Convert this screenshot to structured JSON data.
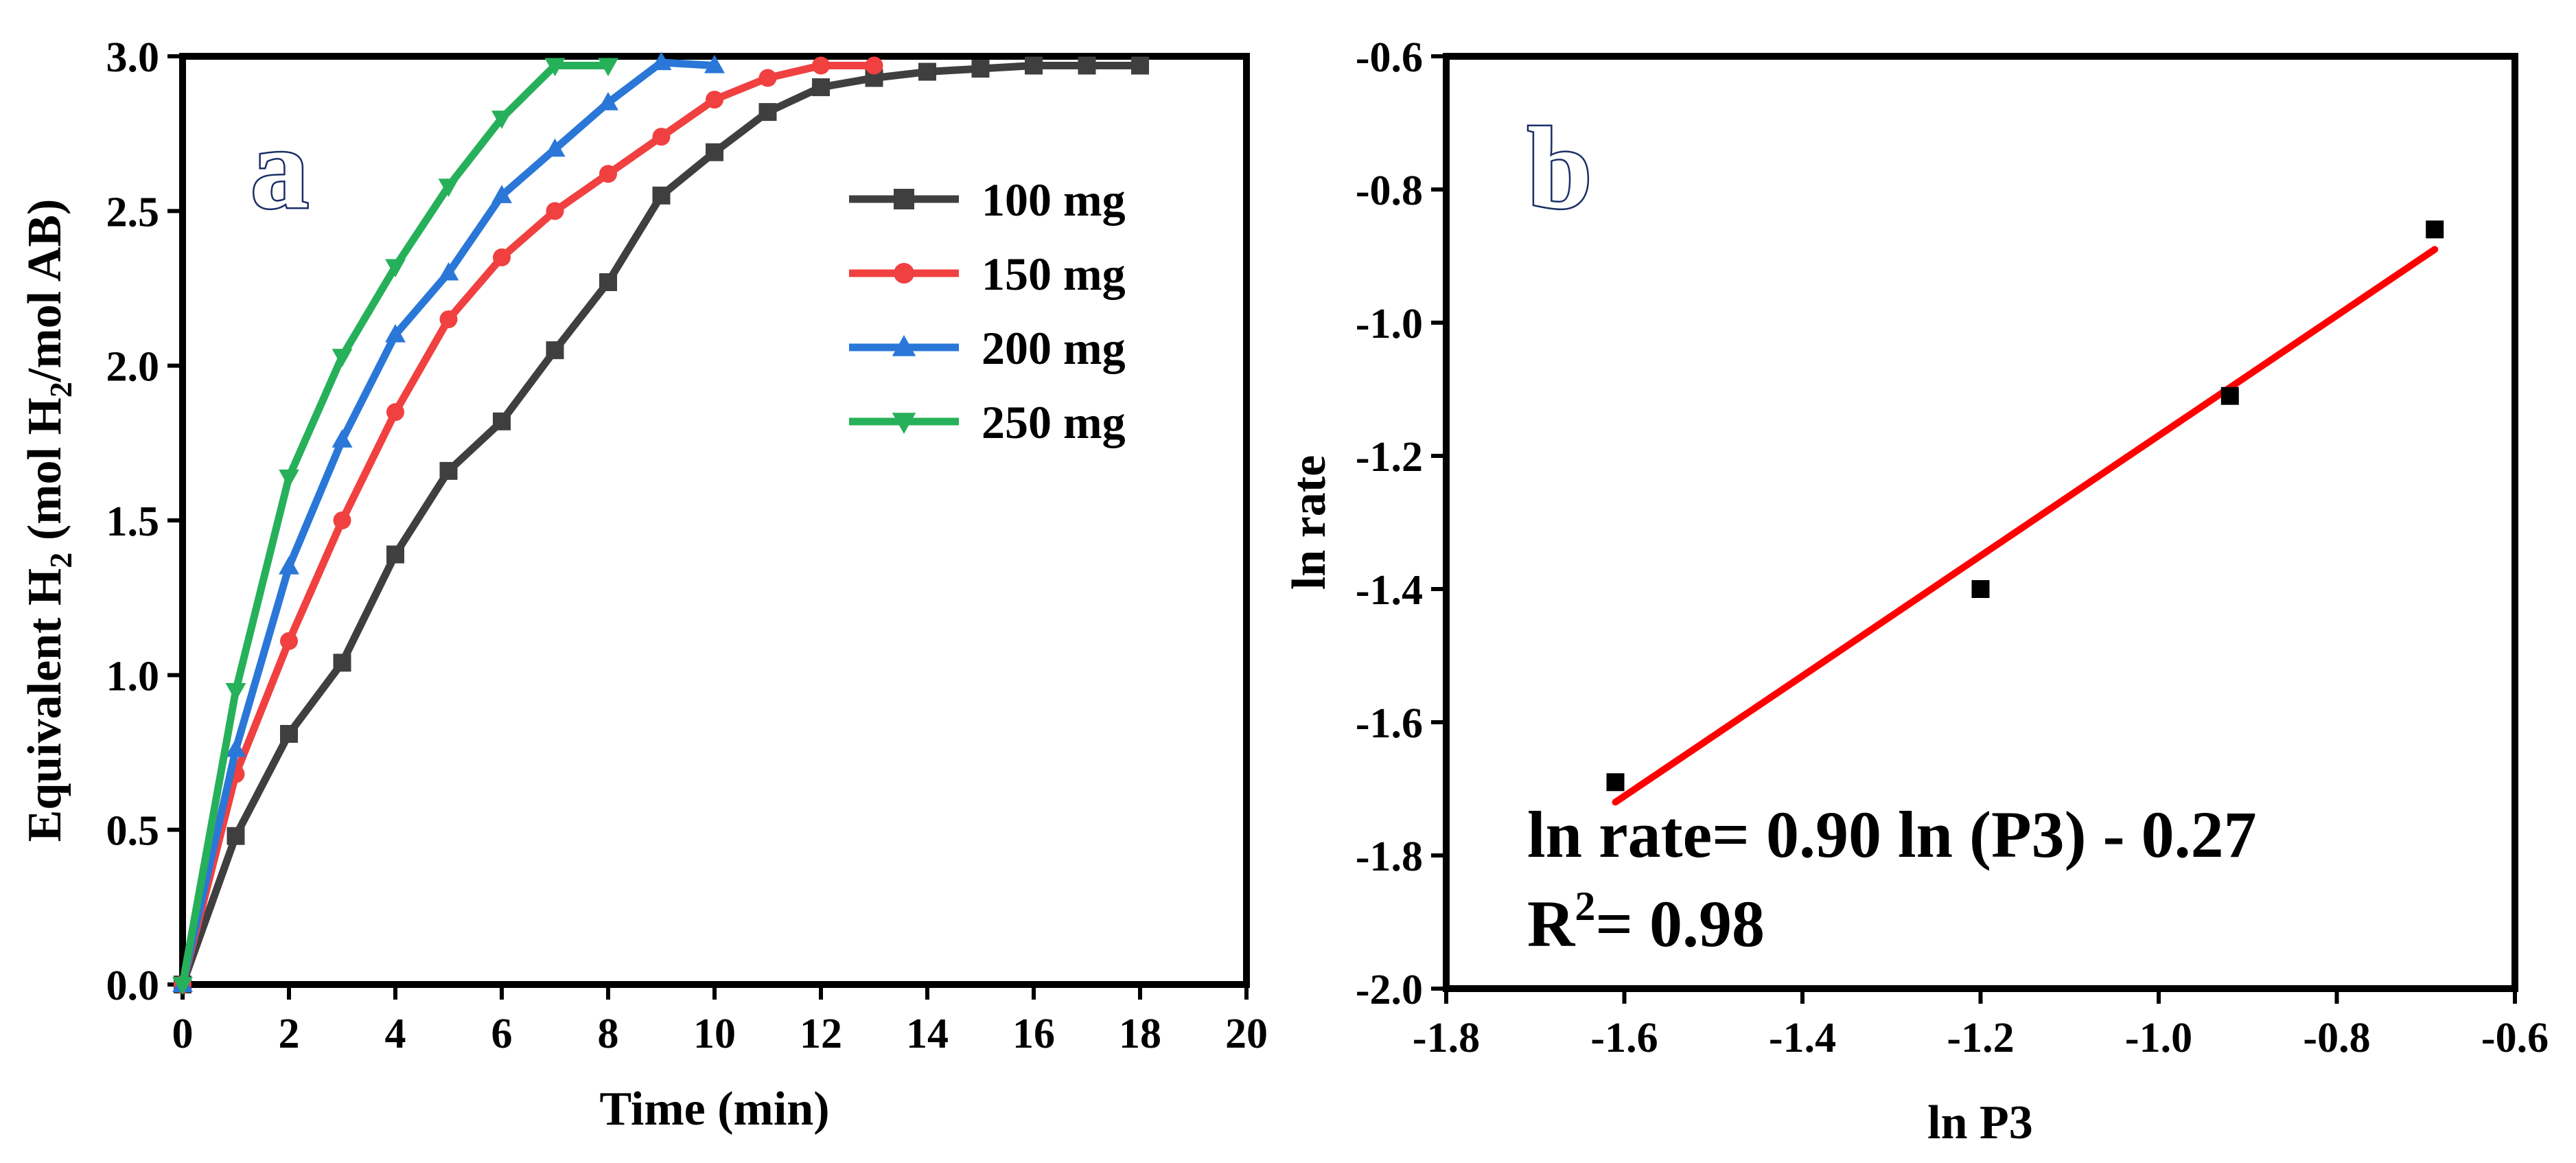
{
  "chart_data": [
    {
      "type": "line",
      "panel_label": "a",
      "xlabel": "Time (min)",
      "ylabel": {
        "pre": "Equivalent H",
        "sub1": "2",
        "mid": " (mol H",
        "sub2": "2",
        "post": "/mol AB)"
      },
      "xlim": [
        0,
        20
      ],
      "ylim": [
        0,
        3
      ],
      "xticks": [
        "0",
        "2",
        "4",
        "6",
        "8",
        "10",
        "12",
        "14",
        "16",
        "18",
        "20"
      ],
      "yticks": [
        "0.0",
        "0.5",
        "1.0",
        "1.5",
        "2.0",
        "2.5",
        "3.0"
      ],
      "legend_position": "top-right",
      "series": [
        {
          "name": "100 mg",
          "color": "#3f3f3f",
          "marker": "square",
          "x": [
            0,
            1,
            2,
            3,
            4,
            5,
            6,
            7,
            8,
            9,
            10,
            11,
            12,
            13,
            14,
            15,
            16,
            17,
            18
          ],
          "y": [
            0,
            0.48,
            0.81,
            1.04,
            1.39,
            1.66,
            1.82,
            2.05,
            2.27,
            2.55,
            2.69,
            2.82,
            2.9,
            2.93,
            2.95,
            2.96,
            2.97,
            2.97,
            2.97
          ]
        },
        {
          "name": "150 mg",
          "color": "#f04040",
          "marker": "circle",
          "x": [
            0,
            1,
            2,
            3,
            4,
            5,
            6,
            7,
            8,
            9,
            10,
            11,
            12,
            13
          ],
          "y": [
            0,
            0.68,
            1.11,
            1.5,
            1.85,
            2.15,
            2.35,
            2.5,
            2.62,
            2.74,
            2.86,
            2.93,
            2.97,
            2.97
          ]
        },
        {
          "name": "200 mg",
          "color": "#2a77d8",
          "marker": "triangle-up",
          "x": [
            0,
            1,
            2,
            3,
            4,
            5,
            6,
            7,
            8,
            9,
            10
          ],
          "y": [
            0,
            0.76,
            1.35,
            1.76,
            2.1,
            2.3,
            2.55,
            2.7,
            2.85,
            2.98,
            2.97
          ]
        },
        {
          "name": "250 mg",
          "color": "#27b05a",
          "marker": "triangle-down",
          "x": [
            0,
            1,
            2,
            3,
            4,
            5,
            6,
            7,
            8
          ],
          "y": [
            0,
            0.95,
            1.64,
            2.03,
            2.32,
            2.58,
            2.8,
            2.97,
            2.97
          ]
        }
      ]
    },
    {
      "type": "scatter",
      "panel_label": "b",
      "xlabel": "ln P3",
      "ylabel": "ln rate",
      "xlim": [
        -1.8,
        -0.6
      ],
      "ylim": [
        -2.0,
        -0.6
      ],
      "xticks": [
        "-1.8",
        "-1.6",
        "-1.4",
        "-1.2",
        "-1.0",
        "-0.8",
        "-0.6"
      ],
      "yticks": [
        "-0.6",
        "-0.8",
        "-1.0",
        "-1.2",
        "-1.4",
        "-1.6",
        "-1.8",
        "-2.0"
      ],
      "points": {
        "x": [
          -1.61,
          -1.2,
          -0.92,
          -0.69
        ],
        "y": [
          -1.69,
          -1.4,
          -1.11,
          -0.86
        ],
        "color": "#000000"
      },
      "fit": {
        "x": [
          -1.61,
          -0.69
        ],
        "y": [
          -1.72,
          -0.89
        ],
        "color": "#ff0000"
      },
      "equation": "ln rate= 0.90 ln (P3) - 0.27",
      "r2": {
        "pre": "R",
        "sup": "2",
        "post": "= 0.98"
      }
    }
  ]
}
